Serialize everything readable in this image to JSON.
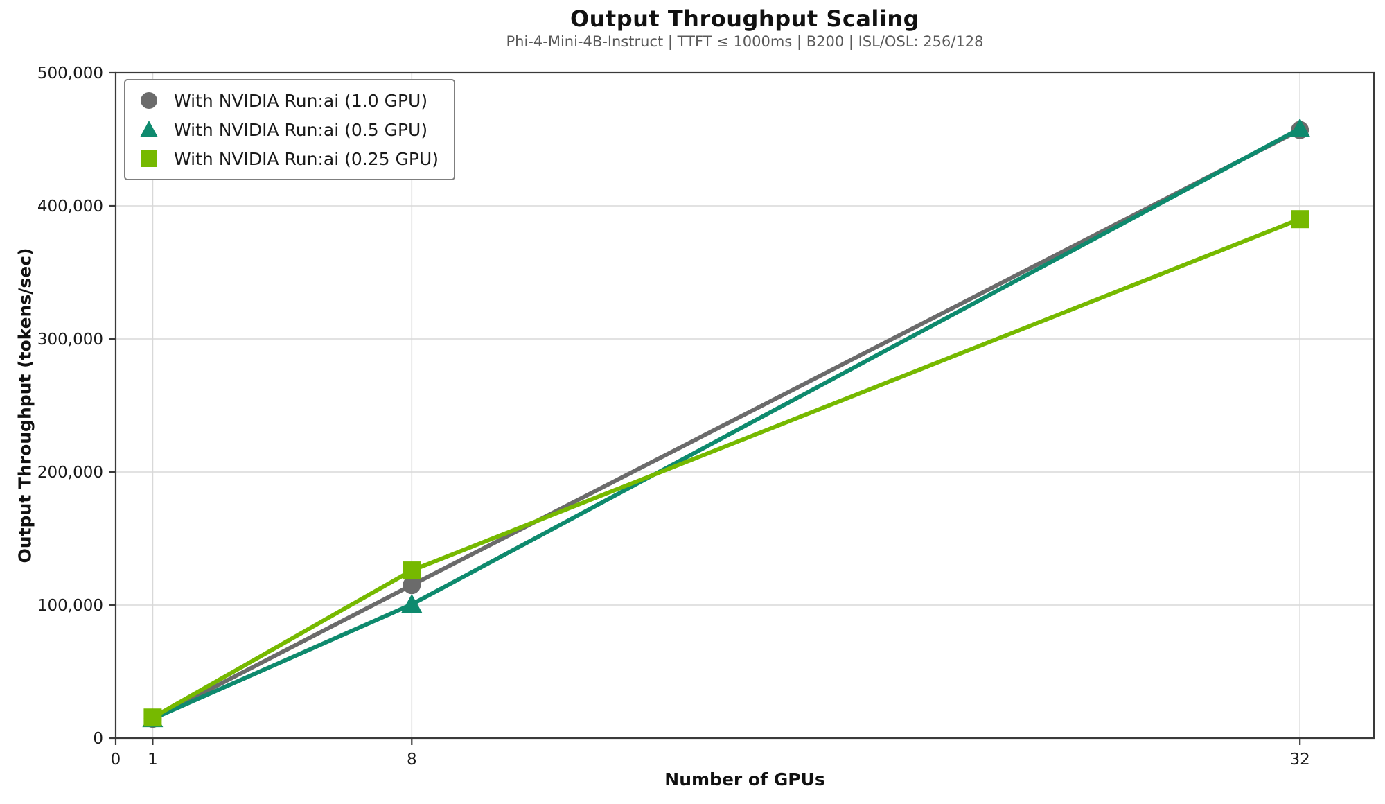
{
  "chart_data": {
    "type": "line",
    "title": "Output Throughput Scaling",
    "subtitle": "Phi-4-Mini-4B-Instruct | TTFT ≤ 1000ms | B200 | ISL/OSL: 256/128",
    "xlabel": "Number of GPUs",
    "ylabel": "Output Throughput (tokens/sec)",
    "xlim": [
      0,
      34
    ],
    "ylim": [
      0,
      500000
    ],
    "x_ticks": [
      0,
      1,
      8,
      32
    ],
    "x_tick_labels": [
      "0",
      "1",
      "8",
      "32"
    ],
    "y_ticks": [
      0,
      100000,
      200000,
      300000,
      400000,
      500000
    ],
    "y_tick_labels": [
      "0",
      "100,000",
      "200,000",
      "300,000",
      "400,000",
      "500,000"
    ],
    "grid": true,
    "legend_position": "upper-left",
    "series": [
      {
        "name": "With NVIDIA Run:ai (1.0 GPU)",
        "color": "#6b6b6b",
        "marker": "circle",
        "x": [
          1,
          8,
          32
        ],
        "y": [
          14500,
          115000,
          457000
        ]
      },
      {
        "name": "With NVIDIA Run:ai (0.5 GPU)",
        "color": "#0e8a6e",
        "marker": "triangle",
        "x": [
          1,
          8,
          32
        ],
        "y": [
          14500,
          100500,
          458000
        ]
      },
      {
        "name": "With NVIDIA Run:ai (0.25 GPU)",
        "color": "#76b900",
        "marker": "square",
        "x": [
          1,
          8,
          32
        ],
        "y": [
          15500,
          126000,
          390000
        ]
      }
    ],
    "style": {
      "grid_color": "#d8d8d8",
      "spine_color": "#3a3a3a",
      "tick_color": "#3a3a3a",
      "line_width": 6
    }
  }
}
